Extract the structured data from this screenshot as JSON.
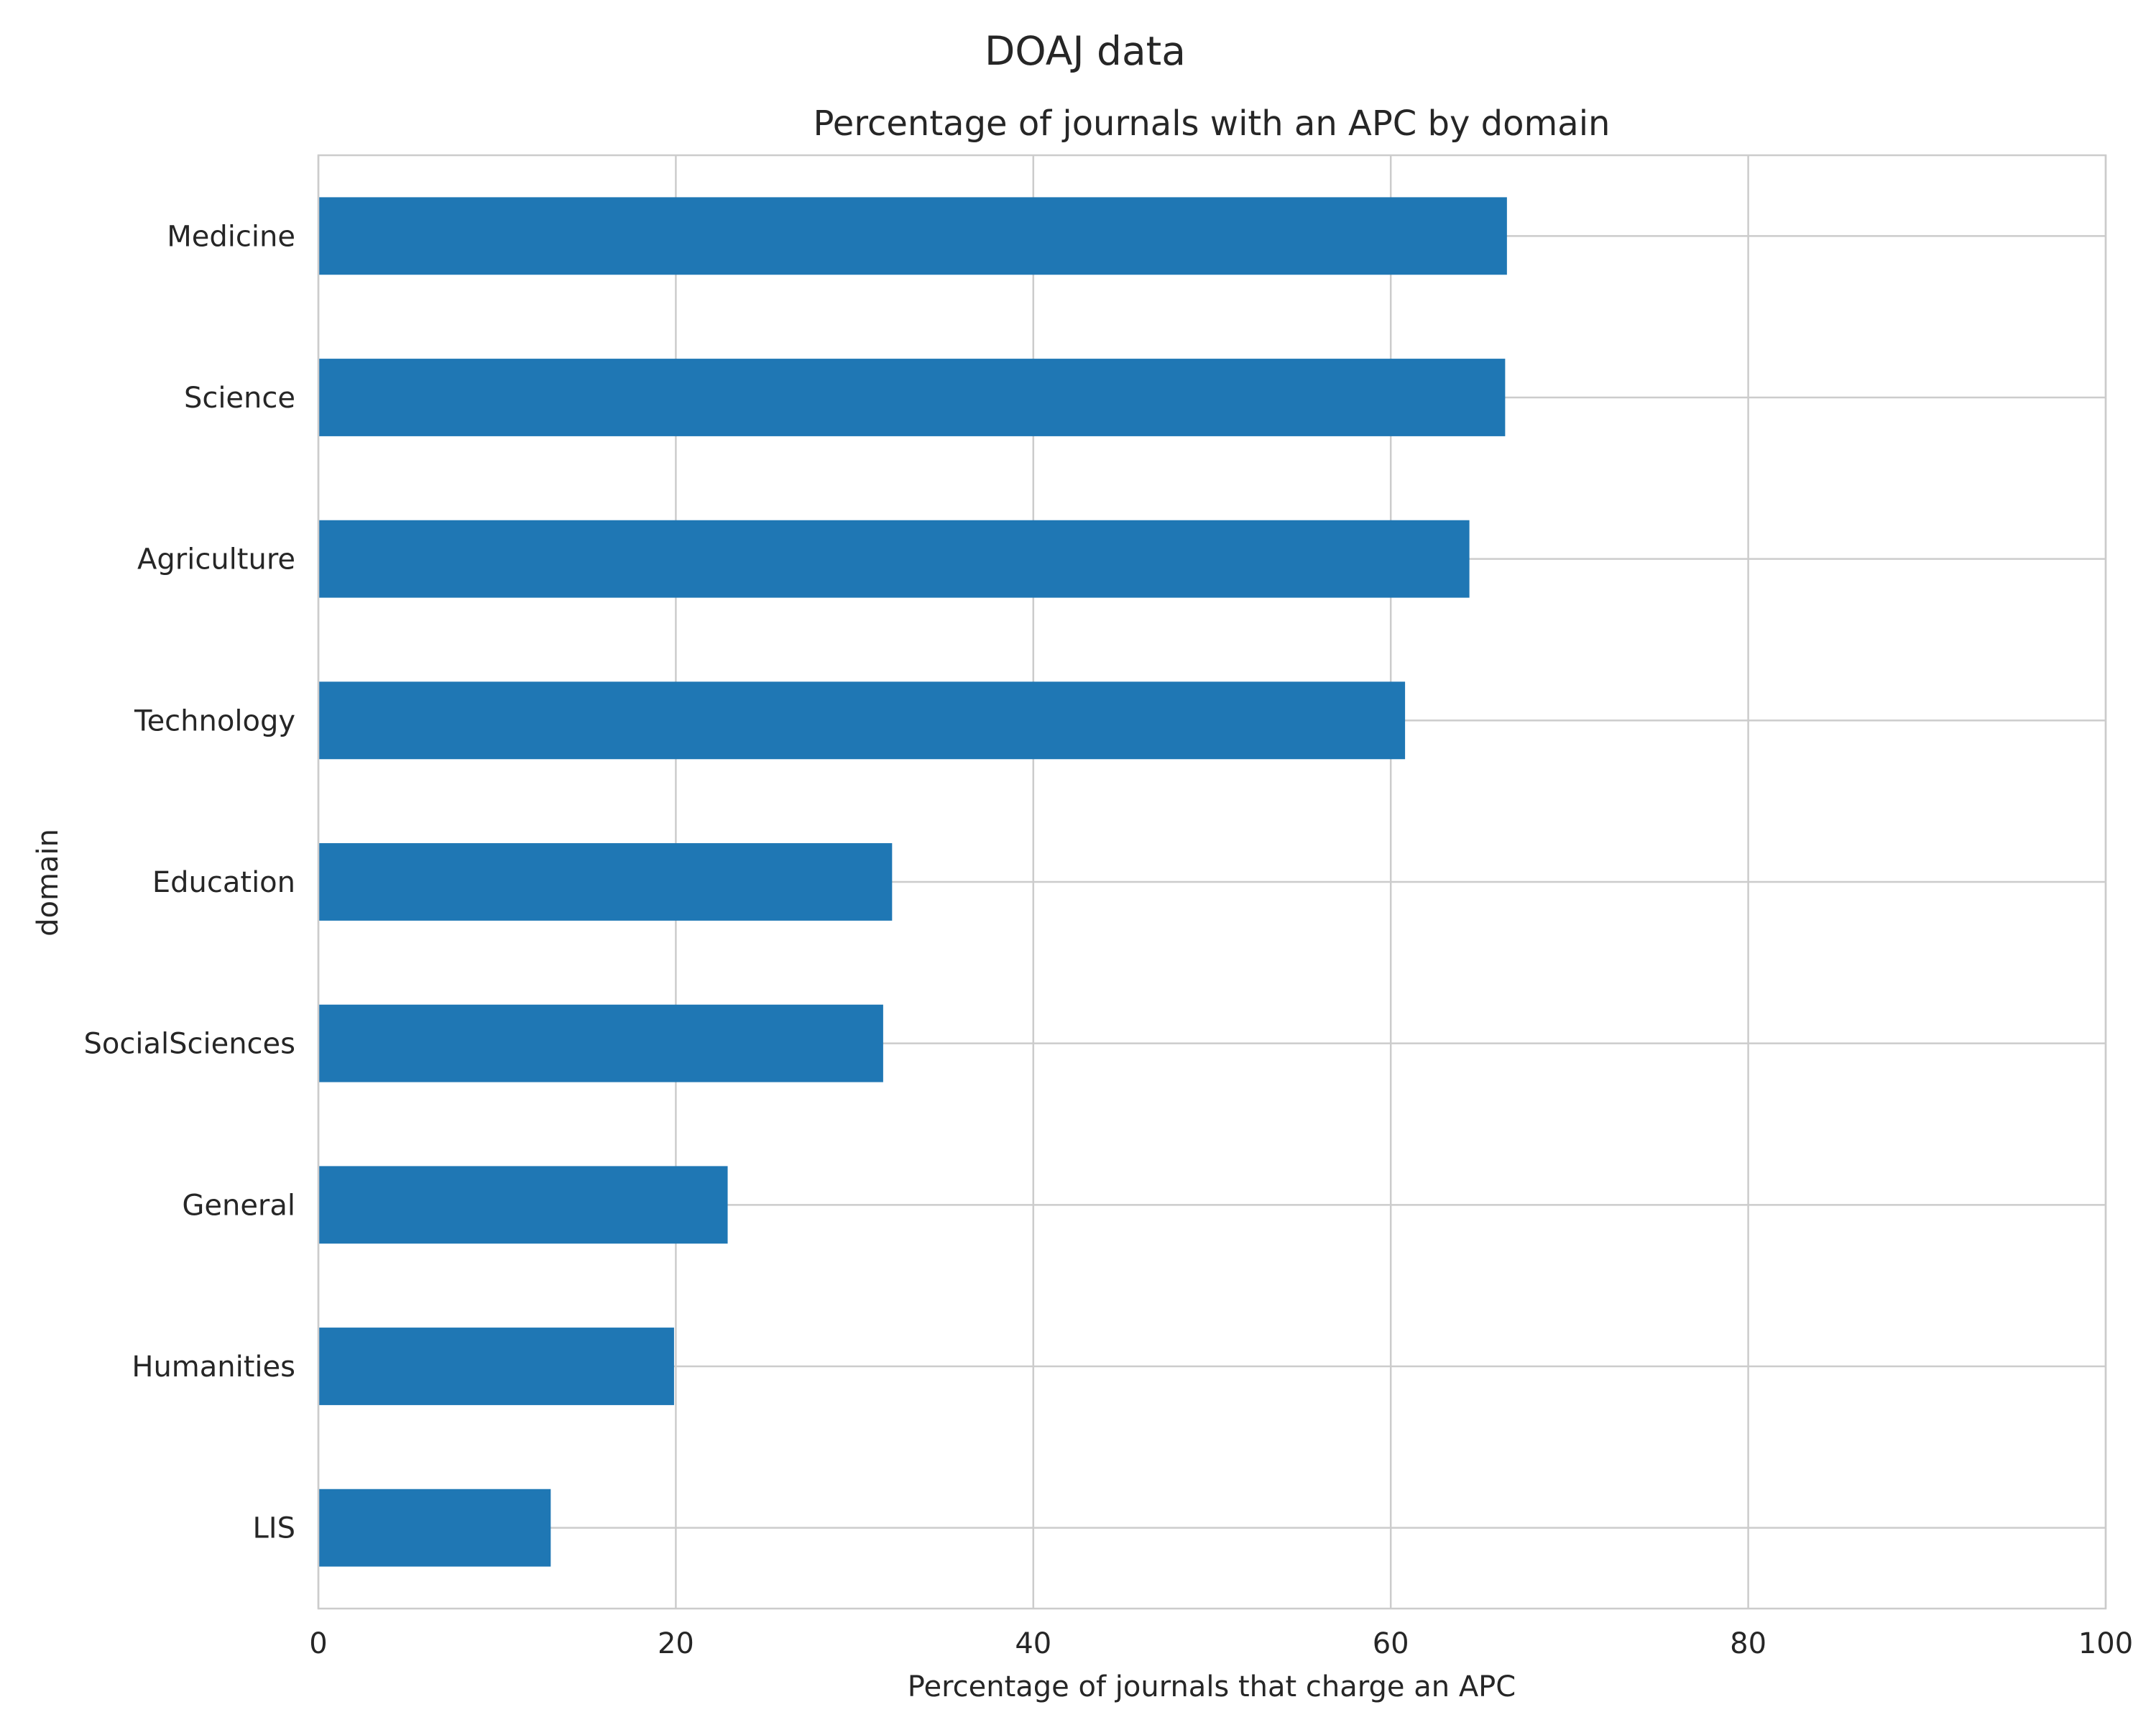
{
  "figure_title": "DOAJ data",
  "chart_data": {
    "type": "bar",
    "orientation": "horizontal",
    "title": "Percentage of journals with an APC by domain",
    "xlabel": "Percentage of journals that charge an APC",
    "ylabel": "domain",
    "categories": [
      "Medicine",
      "Science",
      "Agriculture",
      "Technology",
      "Education",
      "SocialSciences",
      "General",
      "Humanities",
      "LIS"
    ],
    "values": [
      66.5,
      66.4,
      64.4,
      60.8,
      32.1,
      31.6,
      22.9,
      19.9,
      13.0
    ],
    "xlim": [
      0,
      100
    ],
    "xticks": [
      0,
      20,
      40,
      60,
      80,
      100
    ],
    "grid": true,
    "legend": "none",
    "bar_color": "#1f77b4"
  }
}
